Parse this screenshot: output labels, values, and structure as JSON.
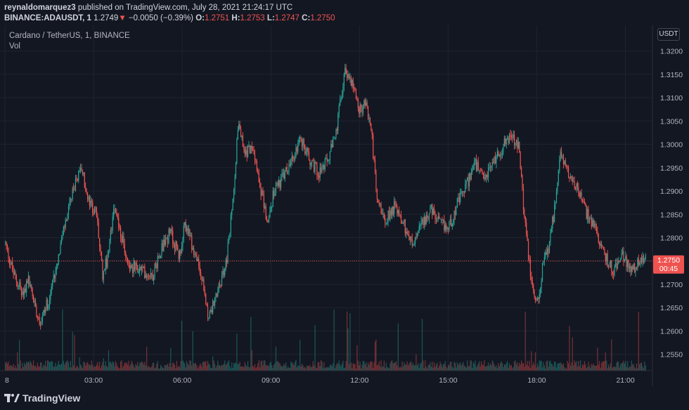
{
  "header": {
    "author": "reynaldomarquez3",
    "published": "published on TradingView.com, July 28, 2021 21:24:17 UTC",
    "symbol": "BINANCE:ADAUSDT, 1",
    "last": "1.2749",
    "change": "−0.0050 (−0.39%)",
    "o_label": "O:",
    "o_value": "1.2751",
    "h_label": "H:",
    "h_value": "1.2753",
    "l_label": "L:",
    "l_value": "1.2747",
    "c_label": "C:",
    "c_value": "1.2750"
  },
  "legend": {
    "title": "Cardano / TetherUS, 1, BINANCE",
    "volume": "Vol"
  },
  "currency_badge": "USDT",
  "price_label": {
    "price": "1.2750",
    "countdown": "00:45"
  },
  "footer": {
    "brand": "TradingView"
  },
  "colors": {
    "background": "#131722",
    "up": "#26a69a",
    "down": "#ef5350",
    "grid": "#1f2330",
    "text": "#d1d4dc"
  },
  "chart_data": {
    "type": "candlestick",
    "title": "Cardano / TetherUS, 1, BINANCE",
    "y_ticks": [
      "1.3200",
      "1.3150",
      "1.3100",
      "1.3050",
      "1.3000",
      "1.2950",
      "1.2900",
      "1.2850",
      "1.2800",
      "1.2750",
      "1.2700",
      "1.2650",
      "1.2600",
      "1.2550"
    ],
    "y_range": [
      1.2515,
      1.3255
    ],
    "x_ticks": [
      "8",
      "03:00",
      "06:00",
      "09:00",
      "12:00",
      "15:00",
      "18:00",
      "21:00"
    ],
    "x_tick_hours": [
      0,
      3,
      6,
      9,
      12,
      15,
      18,
      21
    ],
    "x_range_hours": [
      0,
      21.7
    ],
    "last_price": 1.275,
    "grid": true,
    "close_path_anchors": [
      [
        0.0,
        1.279
      ],
      [
        0.3,
        1.272
      ],
      [
        0.6,
        1.268
      ],
      [
        0.8,
        1.271
      ],
      [
        1.0,
        1.266
      ],
      [
        1.2,
        1.262
      ],
      [
        1.5,
        1.267
      ],
      [
        1.8,
        1.276
      ],
      [
        2.0,
        1.282
      ],
      [
        2.2,
        1.287
      ],
      [
        2.4,
        1.292
      ],
      [
        2.6,
        1.295
      ],
      [
        2.8,
        1.288
      ],
      [
        3.1,
        1.285
      ],
      [
        3.3,
        1.272
      ],
      [
        3.5,
        1.276
      ],
      [
        3.7,
        1.288
      ],
      [
        3.9,
        1.281
      ],
      [
        4.2,
        1.274
      ],
      [
        4.6,
        1.273
      ],
      [
        5.0,
        1.272
      ],
      [
        5.3,
        1.278
      ],
      [
        5.6,
        1.281
      ],
      [
        5.9,
        1.276
      ],
      [
        6.1,
        1.283
      ],
      [
        6.3,
        1.279
      ],
      [
        6.6,
        1.273
      ],
      [
        6.9,
        1.263
      ],
      [
        7.2,
        1.268
      ],
      [
        7.5,
        1.275
      ],
      [
        7.7,
        1.287
      ],
      [
        7.9,
        1.305
      ],
      [
        8.1,
        1.298
      ],
      [
        8.4,
        1.3
      ],
      [
        8.7,
        1.289
      ],
      [
        8.9,
        1.283
      ],
      [
        9.1,
        1.29
      ],
      [
        9.4,
        1.293
      ],
      [
        9.7,
        1.296
      ],
      [
        10.0,
        1.301
      ],
      [
        10.3,
        1.297
      ],
      [
        10.6,
        1.294
      ],
      [
        10.9,
        1.296
      ],
      [
        11.2,
        1.302
      ],
      [
        11.5,
        1.316
      ],
      [
        11.8,
        1.313
      ],
      [
        12.0,
        1.307
      ],
      [
        12.2,
        1.309
      ],
      [
        12.4,
        1.303
      ],
      [
        12.6,
        1.288
      ],
      [
        12.9,
        1.284
      ],
      [
        13.2,
        1.287
      ],
      [
        13.5,
        1.283
      ],
      [
        13.8,
        1.278
      ],
      [
        14.1,
        1.283
      ],
      [
        14.4,
        1.286
      ],
      [
        14.7,
        1.283
      ],
      [
        15.0,
        1.282
      ],
      [
        15.3,
        1.287
      ],
      [
        15.6,
        1.291
      ],
      [
        15.9,
        1.296
      ],
      [
        16.2,
        1.292
      ],
      [
        16.5,
        1.296
      ],
      [
        16.8,
        1.299
      ],
      [
        17.1,
        1.302
      ],
      [
        17.4,
        1.299
      ],
      [
        17.6,
        1.283
      ],
      [
        17.8,
        1.272
      ],
      [
        18.0,
        1.265
      ],
      [
        18.2,
        1.274
      ],
      [
        18.4,
        1.278
      ],
      [
        18.6,
        1.286
      ],
      [
        18.8,
        1.298
      ],
      [
        19.1,
        1.294
      ],
      [
        19.4,
        1.29
      ],
      [
        19.7,
        1.285
      ],
      [
        20.0,
        1.281
      ],
      [
        20.3,
        1.276
      ],
      [
        20.6,
        1.273
      ],
      [
        20.9,
        1.276
      ],
      [
        21.2,
        1.273
      ],
      [
        21.5,
        1.275
      ],
      [
        21.7,
        1.275
      ]
    ]
  }
}
